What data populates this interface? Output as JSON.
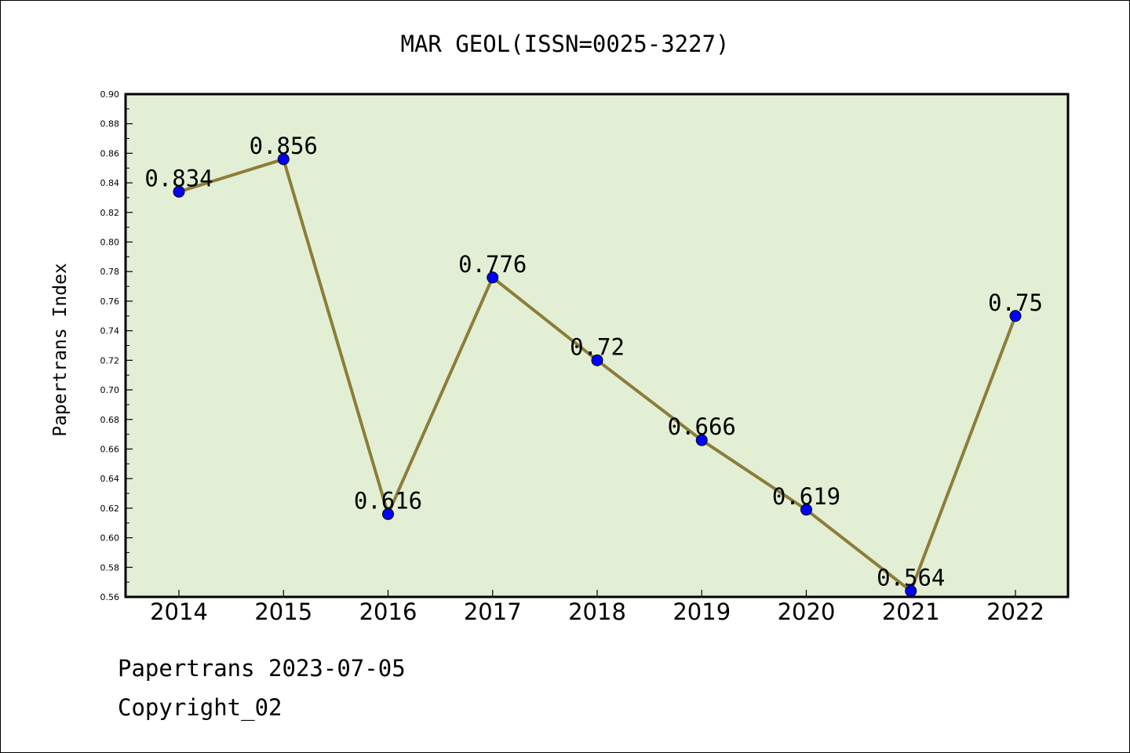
{
  "chart_data": {
    "type": "line",
    "title": "MAR GEOL(ISSN=0025-3227)",
    "xlabel": "",
    "ylabel": "Papertrans Index",
    "categories": [
      "2014",
      "2015",
      "2016",
      "2017",
      "2018",
      "2019",
      "2020",
      "2021",
      "2022"
    ],
    "series": [
      {
        "values": [
          0.834,
          0.856,
          0.616,
          0.776,
          0.72,
          0.666,
          0.619,
          0.564,
          0.75
        ],
        "data_labels": [
          "0.834",
          "0.856",
          "0.616",
          "0.776",
          "0.72",
          "0.666",
          "0.619",
          "0.564",
          "0.75"
        ]
      }
    ],
    "ylim": [
      0.56,
      0.9
    ],
    "yticks": [
      "0.56",
      "0.58",
      "0.60",
      "0.62",
      "0.64",
      "0.66",
      "0.68",
      "0.70",
      "0.72",
      "0.74",
      "0.76",
      "0.78",
      "0.80",
      "0.82",
      "0.84",
      "0.86",
      "0.88",
      "0.90"
    ],
    "grid": false,
    "colors": {
      "plot_background": "#e2efd4",
      "line": "#8b7d3a",
      "marker": "#0000ff"
    }
  },
  "footer": {
    "line1": "Papertrans 2023-07-05",
    "line2": "Copyright_02"
  }
}
